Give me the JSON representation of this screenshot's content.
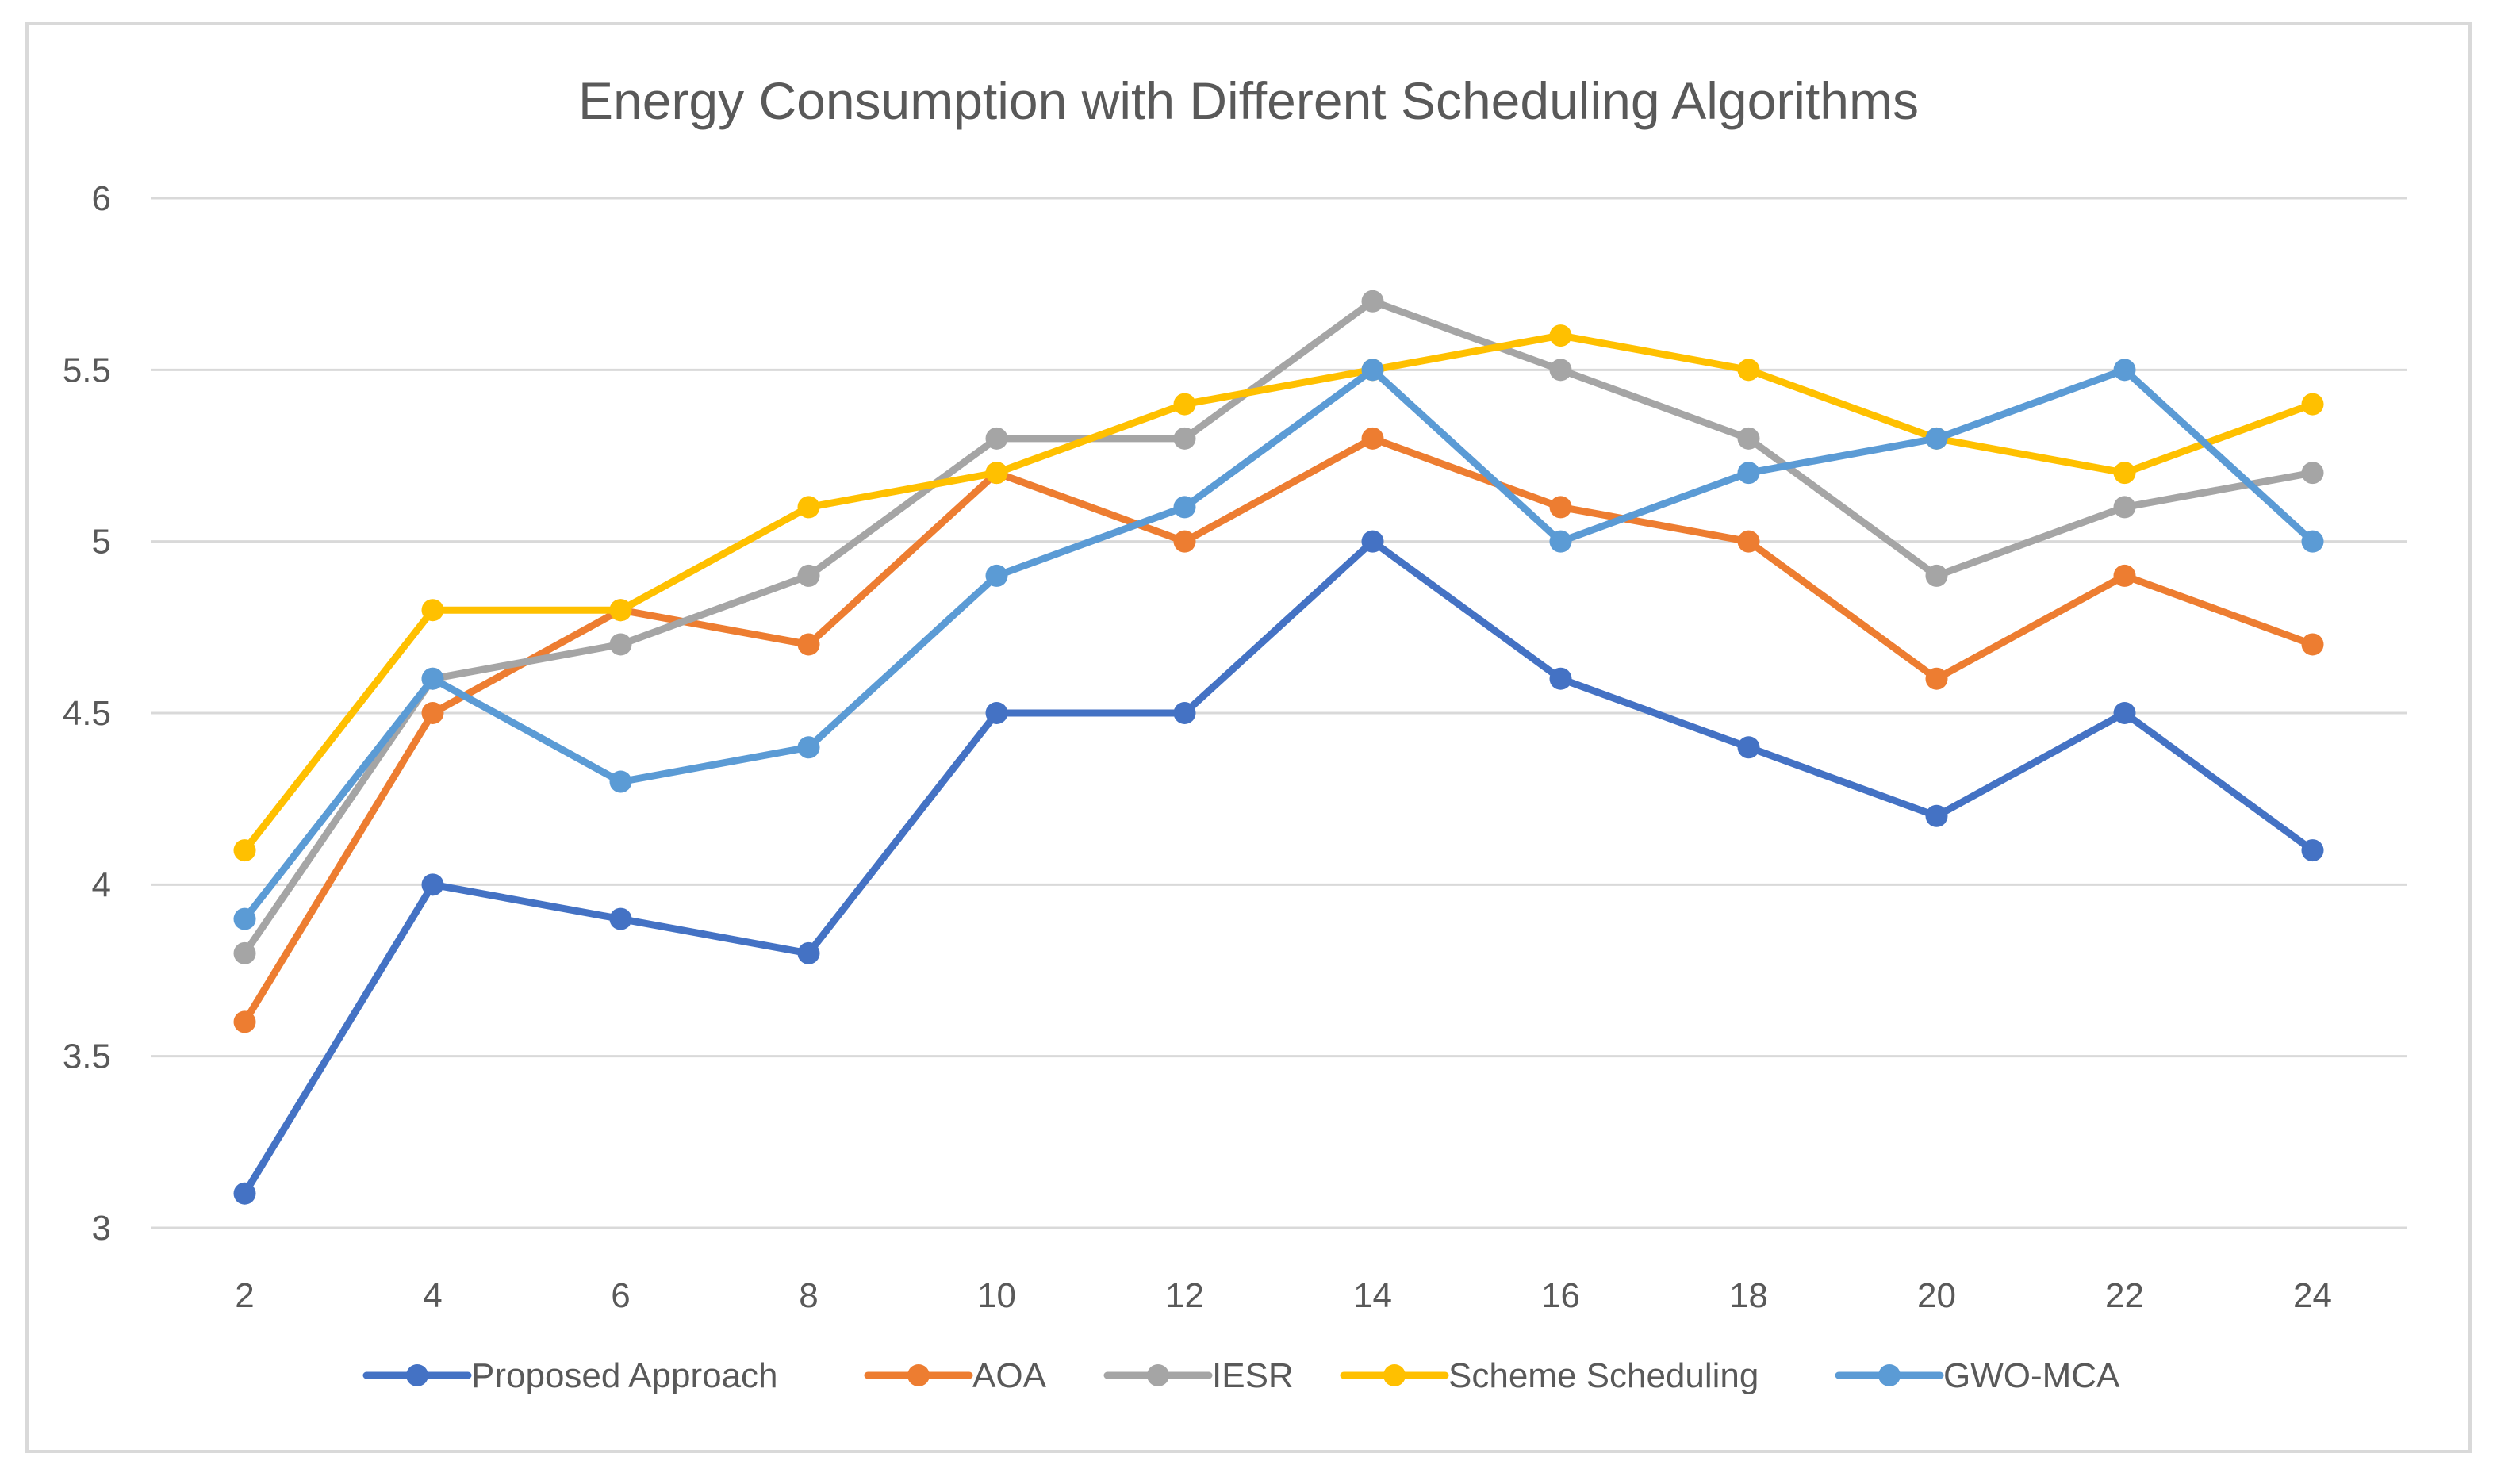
{
  "chart_data": {
    "type": "line",
    "title": "Energy Consumption with Different Scheduling Algorithms",
    "xlabel": "",
    "ylabel": "",
    "x": [
      2,
      4,
      6,
      8,
      10,
      12,
      14,
      16,
      18,
      20,
      22,
      24
    ],
    "ylim": [
      3,
      6
    ],
    "yticks": [
      3,
      3.5,
      4,
      4.5,
      5,
      5.5,
      6
    ],
    "grid": true,
    "legend_position": "bottom",
    "series": [
      {
        "name": "Proposed Approach",
        "color": "#4472C4",
        "values": [
          3.1,
          4.0,
          3.9,
          3.8,
          4.5,
          4.5,
          5.0,
          4.6,
          4.4,
          4.2,
          4.5,
          4.1
        ]
      },
      {
        "name": "AOA",
        "color": "#ED7D31",
        "values": [
          3.6,
          4.5,
          4.8,
          4.7,
          5.2,
          5.0,
          5.3,
          5.1,
          5.0,
          4.6,
          4.9,
          4.7
        ]
      },
      {
        "name": "IESR",
        "color": "#A5A5A5",
        "values": [
          3.8,
          4.6,
          4.7,
          4.9,
          5.3,
          5.3,
          5.7,
          5.5,
          5.3,
          4.9,
          5.1,
          5.2
        ]
      },
      {
        "name": "Scheme Scheduling",
        "color": "#FFC000",
        "values": [
          4.1,
          4.8,
          4.8,
          5.1,
          5.2,
          5.4,
          5.5,
          5.6,
          5.5,
          5.3,
          5.2,
          5.4
        ]
      },
      {
        "name": "GWO-MCA",
        "color": "#5B9BD5",
        "values": [
          3.9,
          4.6,
          4.3,
          4.4,
          4.9,
          5.1,
          5.5,
          5.0,
          5.2,
          5.3,
          5.5,
          5.0
        ]
      }
    ]
  }
}
